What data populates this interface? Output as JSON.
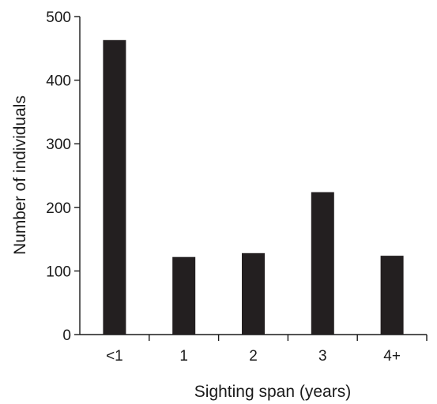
{
  "chart_data": {
    "type": "bar",
    "title": "",
    "xlabel": "Sighting span (years)",
    "ylabel": "Number of individuals",
    "categories": [
      "<1",
      "1",
      "2",
      "3",
      "4+"
    ],
    "values": [
      463,
      122,
      128,
      224,
      124
    ],
    "ylim": [
      0,
      500
    ],
    "yticks": [
      0,
      100,
      200,
      300,
      400,
      500
    ],
    "grid": false,
    "bar_color": "#231f20",
    "axis_color": "#1a1a1a"
  }
}
